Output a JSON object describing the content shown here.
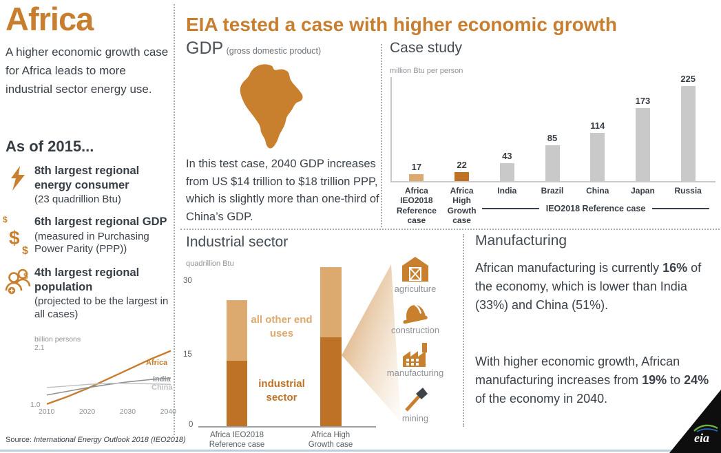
{
  "left": {
    "title": "Africa",
    "intro": "A higher economic growth case for Africa leads to more industrial sector energy use.",
    "as_of": "As of 2015...",
    "facts": [
      {
        "icon": "lightning-icon",
        "bold": "8th largest regional energy consumer",
        "note": "(23 quadrillion Btu)"
      },
      {
        "icon": "dollars-icon",
        "bold": "6th largest regional GDP",
        "note": "(measured in Purchasing Power Parity (PPP))"
      },
      {
        "icon": "population-icon",
        "bold": "4th largest regional population",
        "note": "(projected to be the largest in all cases)"
      }
    ],
    "source_prefix": "Source: ",
    "source_italic": "International Energy Outlook 2018 (IEO2018)"
  },
  "header": {
    "title": "EIA tested a case with higher economic growth"
  },
  "gdp": {
    "title": "GDP",
    "subtitle": "(gross domestic product)",
    "body": "In this test case, 2040 GDP increases from US $14 trillion to $18 trillion PPP, which is slightly more than one-third of China’s GDP."
  },
  "case_study": {
    "title": "Case study",
    "unit": "million Btu per person",
    "annotation": "IEO2018 Reference case"
  },
  "industrial": {
    "title": "Industrial sector",
    "unit": "quadrillion Btu",
    "label_other": "all other end uses",
    "label_industrial": "industrial sector",
    "sectors": [
      {
        "icon": "agriculture-icon",
        "label": "agriculture"
      },
      {
        "icon": "construction-icon",
        "label": "construction"
      },
      {
        "icon": "manufacturing-icon",
        "label": "manufacturing"
      },
      {
        "icon": "mining-icon",
        "label": "mining"
      }
    ]
  },
  "manufacturing": {
    "title": "Manufacturing",
    "p1": [
      "African manufacturing is currently ",
      "16%",
      " of the economy, which is lower than India (33%) and China (51%)."
    ],
    "p2": [
      "With higher economic growth, African manufacturing increases from ",
      "19%",
      " to ",
      "24%",
      " of the economy in 2040."
    ]
  },
  "logo": {
    "text": "eia"
  },
  "colors": {
    "accent_orange": "#c87e2f",
    "bar_light_tan": "#dea96e",
    "bar_dark_orange": "#be7226",
    "bar_gray": "#c9c9c9",
    "text_dark": "#3b4149",
    "bottom_rule": "#bccfdc"
  },
  "chart_data": [
    {
      "type": "line",
      "title": "population projection",
      "ylabel": "billion persons",
      "y_top_label": "2.1",
      "y_bottom_label": "1.0",
      "ylim": [
        1.0,
        2.1
      ],
      "x": [
        2010,
        2015,
        2020,
        2025,
        2030,
        2035,
        2040
      ],
      "x_ticks": [
        "2010",
        "2020",
        "2030",
        "2040"
      ],
      "grid": false,
      "series": [
        {
          "name": "Africa",
          "color": "#c87b2d",
          "width": 2.4,
          "values": [
            1.04,
            1.18,
            1.34,
            1.52,
            1.7,
            1.88,
            2.04
          ]
        },
        {
          "name": "India",
          "color": "#8d9196",
          "width": 1.6,
          "values": [
            1.21,
            1.28,
            1.35,
            1.41,
            1.46,
            1.5,
            1.53
          ]
        },
        {
          "name": "China",
          "color": "#bcbfc2",
          "width": 1.4,
          "values": [
            1.35,
            1.38,
            1.41,
            1.43,
            1.43,
            1.42,
            1.41
          ]
        }
      ],
      "legend_position": "right-of-lines"
    },
    {
      "type": "bar",
      "title": "Case study",
      "ylabel": "million Btu per person",
      "categories": [
        "Africa IEO2018 Reference case",
        "Africa High Growth case",
        "India",
        "Brazil",
        "China",
        "Japan",
        "Russia"
      ],
      "values": [
        17,
        22,
        43,
        85,
        114,
        173,
        225
      ],
      "colors": [
        "#dea96e",
        "#be7226",
        "#c9c9c9",
        "#c9c9c9",
        "#c9c9c9",
        "#c9c9c9",
        "#c9c9c9"
      ],
      "data_labels": true,
      "ylim": [
        0,
        235
      ],
      "group_annotation": {
        "text": "IEO2018 Reference case",
        "applies_to": [
          "India",
          "Brazil",
          "China",
          "Japan",
          "Russia"
        ]
      }
    },
    {
      "type": "stacked-bar",
      "title": "Industrial sector",
      "ylabel": "quadrillion Btu",
      "categories": [
        "Africa IEO2018 Reference case",
        "Africa High Growth case"
      ],
      "series": [
        {
          "name": "industrial sector",
          "color": "#be7226",
          "values": [
            14,
            19
          ]
        },
        {
          "name": "all other end uses",
          "color": "#dca96e",
          "values": [
            13,
            15
          ]
        }
      ],
      "y_ticks": [
        0,
        15,
        30
      ],
      "ylim": [
        0,
        35
      ]
    }
  ]
}
